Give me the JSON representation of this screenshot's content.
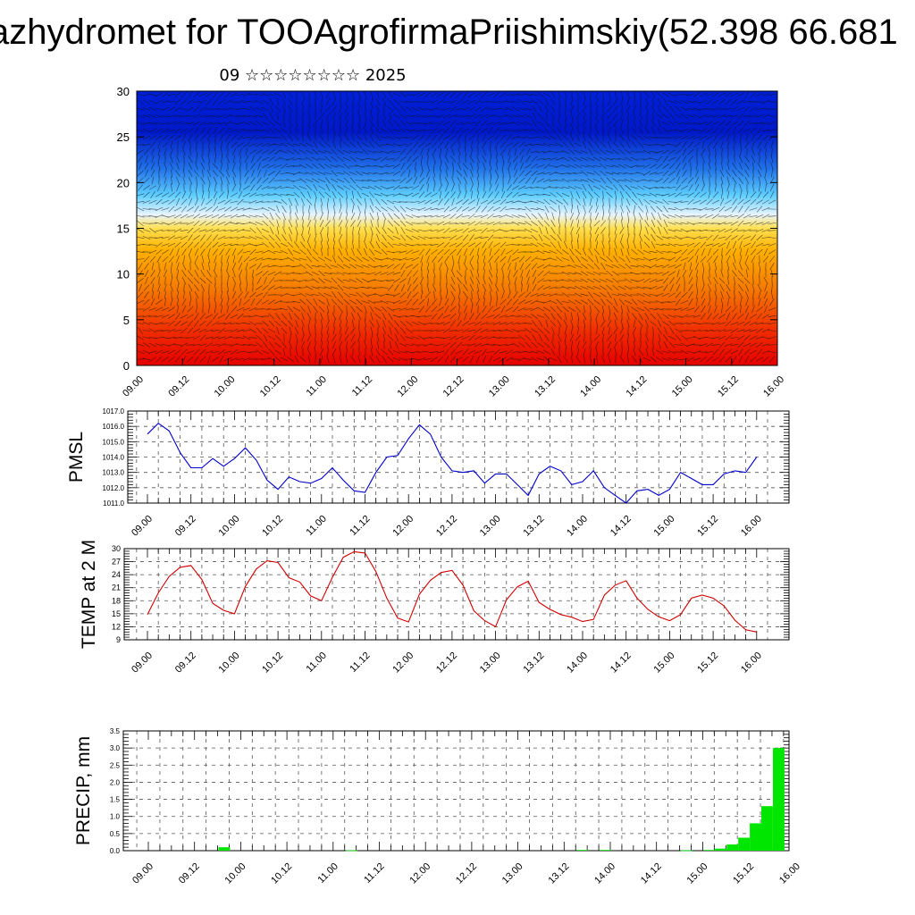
{
  "header": {
    "title": "azhydromet for TOOAgrofirmaPriishimskiy(52.398 66.681",
    "subtitle": "09 ☆☆☆☆☆☆☆☆ 2025"
  },
  "colors": {
    "pmsl_line": "#0000cc",
    "temp_line": "#d00000",
    "precip_bar": "#00e600",
    "grid": "#555555",
    "cross_section_low": "#e60000",
    "cross_section_high": "#0018c8"
  },
  "chart_data": [
    {
      "type": "heatmap",
      "x_ticks": [
        "09.00",
        "09.12",
        "10.00",
        "10.12",
        "11.00",
        "11.12",
        "12.00",
        "12.12",
        "13.00",
        "13.12",
        "14.00",
        "14.12",
        "15.00",
        "15.12",
        "16.00"
      ],
      "y_ticks": [
        "0",
        "5",
        "10",
        "15",
        "20",
        "25",
        "30"
      ],
      "ylim": [
        0,
        30
      ],
      "overlay": "wind vectors"
    },
    {
      "type": "line",
      "ylabel": "PMSL",
      "ylim": [
        1011.0,
        1017.0
      ],
      "y_ticks": [
        "1011.0",
        "1012.0",
        "1013.0",
        "1014.0",
        "1015.0",
        "1016.0",
        "1017.0"
      ],
      "x_ticks": [
        "09.00",
        "09.12",
        "10.00",
        "10.12",
        "11.00",
        "11.12",
        "12.00",
        "12.12",
        "13.00",
        "13.12",
        "14.00",
        "14.12",
        "15.00",
        "15.12",
        "16.00"
      ],
      "series": [
        {
          "values": [
            1015.5,
            1016.2,
            1015.7,
            1014.3,
            1013.3,
            1013.3,
            1013.9,
            1013.4,
            1013.9,
            1014.6,
            1013.8,
            1012.5,
            1011.9,
            1012.7,
            1012.4,
            1012.3,
            1012.6,
            1013.3,
            1012.5,
            1011.8,
            1011.7,
            1013.0,
            1014.0,
            1014.1,
            1015.2,
            1016.1,
            1015.5,
            1014.0,
            1013.1,
            1013.0,
            1013.1,
            1012.3,
            1012.9,
            1012.9,
            1012.2,
            1011.5,
            1012.9,
            1013.4,
            1013.1,
            1012.2,
            1012.4,
            1013.1,
            1012.0,
            1011.5,
            1011.0,
            1011.8,
            1011.9,
            1011.5,
            1011.9,
            1013.0,
            1012.6,
            1012.2,
            1012.2,
            1012.9,
            1013.1,
            1013.0,
            1014.0
          ]
        }
      ]
    },
    {
      "type": "line",
      "ylabel": "TEMP at 2 M",
      "ylim": [
        9,
        30
      ],
      "y_ticks": [
        "9",
        "12",
        "15",
        "18",
        "21",
        "24",
        "27",
        "30"
      ],
      "x_ticks": [
        "09.00",
        "09.12",
        "10.00",
        "10.12",
        "11.00",
        "11.12",
        "12.00",
        "12.12",
        "13.00",
        "13.12",
        "14.00",
        "14.12",
        "15.00",
        "15.12",
        "16.00"
      ],
      "series": [
        {
          "values": [
            14.8,
            19.8,
            23.6,
            25.7,
            26.1,
            22.9,
            17.4,
            15.8,
            15.0,
            21.3,
            25.3,
            27.2,
            26.8,
            23.3,
            22.3,
            19.1,
            18.0,
            23.4,
            28.0,
            29.3,
            29.0,
            24.7,
            18.6,
            14.0,
            13.1,
            19.5,
            22.7,
            24.5,
            25.0,
            21.6,
            15.7,
            13.4,
            12.0,
            18.2,
            21.2,
            22.5,
            17.6,
            16.0,
            14.8,
            14.2,
            13.2,
            13.7,
            19.3,
            21.6,
            22.6,
            18.6,
            16.0,
            14.3,
            13.4,
            14.8,
            18.6,
            19.3,
            18.6,
            16.8,
            13.5,
            11.3,
            10.8
          ]
        }
      ]
    },
    {
      "type": "bar",
      "ylabel": "PRECIP, mm",
      "ylim": [
        0.0,
        3.5
      ],
      "y_ticks": [
        "0.0",
        "0.5",
        "1.0",
        "1.5",
        "2.0",
        "2.5",
        "3.0",
        "3.5"
      ],
      "x_ticks": [
        "09.00",
        "09.12",
        "10.00",
        "10.12",
        "11.00",
        "11.12",
        "12.00",
        "12.12",
        "13.00",
        "13.12",
        "14.00",
        "14.12",
        "15.00",
        "15.12",
        "16.00"
      ],
      "values": [
        0,
        0,
        0,
        0,
        0,
        0,
        0.1,
        0,
        0,
        0,
        0,
        0,
        0,
        0,
        0,
        0,
        0,
        0.01,
        0,
        0,
        0,
        0,
        0,
        0,
        0,
        0,
        0,
        0,
        0,
        0,
        0,
        0,
        0,
        0,
        0,
        0,
        0,
        0.02,
        0,
        0.02,
        0,
        0,
        0,
        0,
        0,
        0,
        0.01,
        0,
        0.02,
        0.06,
        0.18,
        0.38,
        0.8,
        1.3,
        3.0
      ]
    }
  ]
}
